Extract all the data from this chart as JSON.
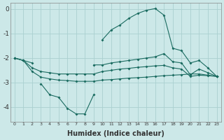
{
  "xlabel": "Humidex (Indice chaleur)",
  "bg_color": "#cce8e8",
  "grid_color": "#aad0d0",
  "line_color": "#1a6b60",
  "x_values": [
    0,
    1,
    2,
    3,
    4,
    5,
    6,
    7,
    8,
    9,
    10,
    11,
    12,
    13,
    14,
    15,
    16,
    17,
    18,
    19,
    20,
    21,
    22,
    23
  ],
  "line_main_peak": [
    null,
    null,
    null,
    null,
    null,
    null,
    null,
    null,
    null,
    null,
    -1.25,
    -0.85,
    -0.65,
    -0.38,
    -0.18,
    -0.05,
    0.02,
    -0.25,
    -1.6,
    -1.7,
    -2.2,
    -2.1,
    -2.4,
    -2.75
  ],
  "line_dip": [
    null,
    null,
    null,
    -3.05,
    -3.5,
    -3.6,
    -4.05,
    -4.28,
    -4.28,
    -3.5,
    null,
    null,
    null,
    null,
    null,
    null,
    null,
    null,
    null,
    null,
    null,
    null,
    null,
    null
  ],
  "line_upper": [
    -2.0,
    -2.1,
    -2.2,
    null,
    null,
    null,
    null,
    null,
    null,
    -2.28,
    -2.28,
    -2.2,
    -2.15,
    -2.1,
    -2.05,
    -2.0,
    -1.95,
    -1.82,
    -2.15,
    -2.2,
    -2.68,
    -2.45,
    -2.6,
    -2.75
  ],
  "line_mid": [
    -2.0,
    -2.1,
    -2.4,
    -2.55,
    -2.6,
    -2.65,
    -2.65,
    -2.65,
    -2.65,
    -2.65,
    -2.55,
    -2.5,
    -2.45,
    -2.42,
    -2.38,
    -2.35,
    -2.32,
    -2.3,
    -2.4,
    -2.45,
    -2.75,
    -2.7,
    -2.72,
    -2.75
  ],
  "line_lower": [
    -2.0,
    -2.1,
    -2.55,
    -2.78,
    -2.85,
    -2.9,
    -2.92,
    -2.95,
    -2.95,
    -2.95,
    -2.9,
    -2.88,
    -2.85,
    -2.82,
    -2.8,
    -2.78,
    -2.75,
    -2.72,
    -2.7,
    -2.68,
    -2.65,
    -2.65,
    -2.7,
    -2.75
  ],
  "ylim": [
    -4.6,
    0.25
  ],
  "yticks": [
    0,
    -1,
    -2,
    -3,
    -4
  ],
  "xlim": [
    -0.5,
    23.5
  ],
  "xtick_labels": [
    "0",
    "1",
    "2",
    "3",
    "4",
    "5",
    "6",
    "7",
    "8",
    "9",
    "1011",
    "1213",
    "1415",
    "1617",
    "1819",
    "2021",
    "2223"
  ]
}
